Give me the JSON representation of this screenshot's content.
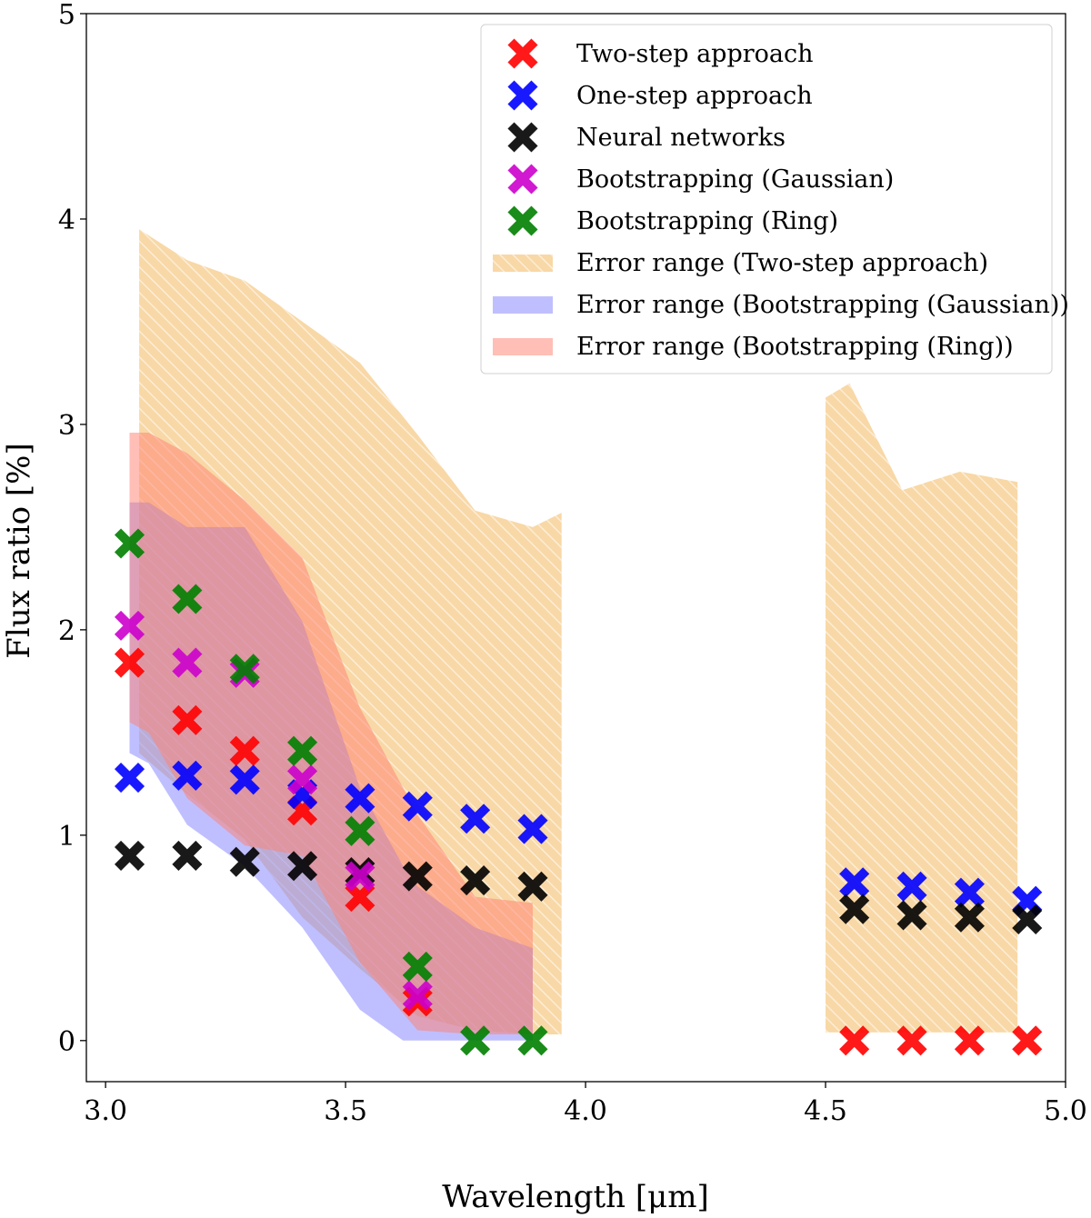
{
  "chart_data": {
    "type": "scatter",
    "title": "",
    "xlabel": "Wavelength [μm]",
    "ylabel": "Flux ratio  [%]",
    "xlim": [
      2.96,
      5.0
    ],
    "ylim": [
      -0.2,
      5.0
    ],
    "xticks": [
      "3.0",
      "3.5",
      "4.0",
      "4.5",
      "5.0"
    ],
    "xtick_values": [
      3.0,
      3.5,
      4.0,
      4.5,
      5.0
    ],
    "yticks": [
      "0",
      "1",
      "2",
      "3",
      "4",
      "5"
    ],
    "ytick_values": [
      0,
      1,
      2,
      3,
      4,
      5
    ],
    "legend_position": "top-right",
    "series": [
      {
        "name": "Two-step approach",
        "color": "#ff0000",
        "marker": "X",
        "x": [
          3.05,
          3.17,
          3.29,
          3.41,
          3.53,
          3.65,
          4.56,
          4.68,
          4.8,
          4.92
        ],
        "y": [
          1.84,
          1.56,
          1.41,
          1.12,
          0.7,
          0.19,
          0.0,
          0.0,
          0.0,
          0.0
        ]
      },
      {
        "name": "One-step approach",
        "color": "#0000ff",
        "marker": "X",
        "x": [
          3.05,
          3.17,
          3.29,
          3.41,
          3.53,
          3.65,
          3.77,
          3.89,
          4.56,
          4.68,
          4.8,
          4.92
        ],
        "y": [
          1.28,
          1.29,
          1.27,
          1.2,
          1.18,
          1.14,
          1.08,
          1.03,
          0.77,
          0.75,
          0.72,
          0.68
        ]
      },
      {
        "name": "Neural networks",
        "color": "#000000",
        "marker": "X",
        "x": [
          3.05,
          3.17,
          3.29,
          3.41,
          3.53,
          3.65,
          3.77,
          3.89,
          4.56,
          4.68,
          4.8,
          4.92
        ],
        "y": [
          0.9,
          0.9,
          0.87,
          0.85,
          0.82,
          0.8,
          0.78,
          0.75,
          0.64,
          0.61,
          0.6,
          0.59
        ]
      },
      {
        "name": "Bootstrapping (Gaussian)",
        "color": "#cc00cc",
        "marker": "X",
        "x": [
          3.05,
          3.17,
          3.29,
          3.41,
          3.53,
          3.65
        ],
        "y": [
          2.02,
          1.84,
          1.79,
          1.27,
          0.8,
          0.22
        ]
      },
      {
        "name": "Bootstrapping (Ring)",
        "color": "#008000",
        "marker": "X",
        "x": [
          3.05,
          3.17,
          3.29,
          3.41,
          3.53,
          3.65,
          3.77,
          3.89
        ],
        "y": [
          2.42,
          2.15,
          1.81,
          1.41,
          1.02,
          0.36,
          0.0,
          0.0
        ]
      }
    ],
    "error_bands": [
      {
        "name": "Error range (Two-step approach)",
        "color": "#f5c77e",
        "style": "hatched",
        "segments": [
          {
            "x": [
              3.07,
              3.17,
              3.29,
              3.41,
              3.53,
              3.65,
              3.77,
              3.89,
              3.95
            ],
            "upper": [
              3.95,
              3.8,
              3.7,
              3.5,
              3.3,
              2.95,
              2.58,
              2.5,
              2.57
            ],
            "lower": [
              1.4,
              1.2,
              0.98,
              0.6,
              0.35,
              0.12,
              0.05,
              0.03,
              0.03
            ]
          },
          {
            "x": [
              4.5,
              4.55,
              4.66,
              4.78,
              4.9
            ],
            "upper": [
              3.13,
              3.2,
              2.68,
              2.77,
              2.72
            ],
            "lower": [
              0.04,
              0.04,
              0.04,
              0.04,
              0.04
            ]
          }
        ]
      },
      {
        "name": "Error range (Bootstrapping (Gaussian))",
        "color": "#8080ff",
        "style": "filled",
        "segments": [
          {
            "x": [
              3.05,
              3.09,
              3.17,
              3.29,
              3.41,
              3.53,
              3.62,
              3.65,
              3.77,
              3.89
            ],
            "upper": [
              2.62,
              2.62,
              2.5,
              2.5,
              2.04,
              1.23,
              0.85,
              0.75,
              0.55,
              0.45
            ],
            "lower": [
              1.4,
              1.35,
              1.05,
              0.85,
              0.55,
              0.15,
              0.0,
              0.0,
              0.0,
              0.0
            ]
          }
        ]
      },
      {
        "name": "Error range (Bootstrapping (Ring))",
        "color": "#ff8070",
        "style": "filled",
        "segments": [
          {
            "x": [
              3.05,
              3.09,
              3.17,
              3.29,
              3.41,
              3.53,
              3.65,
              3.77,
              3.89
            ],
            "upper": [
              2.96,
              2.96,
              2.86,
              2.63,
              2.35,
              1.62,
              1.1,
              0.7,
              0.67
            ],
            "lower": [
              1.55,
              1.5,
              1.18,
              0.95,
              0.9,
              0.38,
              0.05,
              0.03,
              0.03
            ]
          }
        ]
      }
    ]
  }
}
